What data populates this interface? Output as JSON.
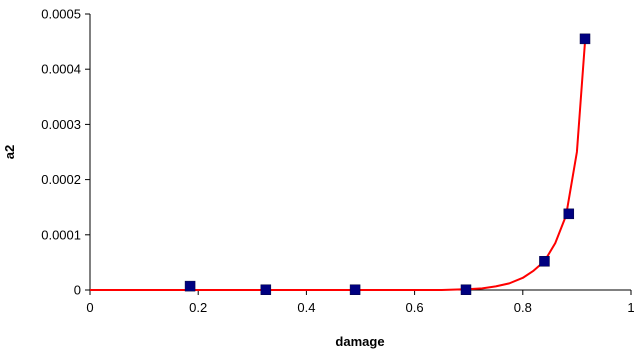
{
  "chart_data": {
    "type": "scatter",
    "title": "",
    "xlabel": "damage",
    "ylabel": "a2",
    "xlim": [
      0,
      1
    ],
    "ylim": [
      0,
      0.0005
    ],
    "x_ticks": [
      0,
      0.2,
      0.4,
      0.6,
      0.8,
      1
    ],
    "x_tick_labels": [
      "0",
      "0.2",
      "0.4",
      "0.6",
      "0.8",
      "1"
    ],
    "y_ticks": [
      0,
      0.0001,
      0.0002,
      0.0003,
      0.0004,
      0.0005
    ],
    "y_tick_labels": [
      "0",
      "0.0001",
      "0.0002",
      "0.0003",
      "0.0004",
      "0.0005"
    ],
    "grid": false,
    "legend": "none",
    "series": [
      {
        "kind": "points",
        "marker": "square",
        "color": "#000080",
        "x": [
          0.185,
          0.325,
          0.49,
          0.695,
          0.84,
          0.885,
          0.915
        ],
        "y": [
          7e-06,
          5e-07,
          5e-07,
          5e-07,
          5.2e-05,
          0.000138,
          0.000455
        ]
      },
      {
        "kind": "fit-line",
        "color": "#ff0000",
        "x": [
          0,
          0.1,
          0.2,
          0.3,
          0.4,
          0.5,
          0.6,
          0.65,
          0.7,
          0.725,
          0.75,
          0.775,
          0.8,
          0.82,
          0.84,
          0.86,
          0.88,
          0.9,
          0.915
        ],
        "y": [
          0,
          0,
          0,
          0,
          0,
          0,
          0,
          0,
          1.5e-06,
          3e-06,
          6.5e-06,
          1.2e-05,
          2.2e-05,
          3.5e-05,
          5.2e-05,
          8.5e-05,
          0.000135,
          0.00025,
          0.00045
        ]
      }
    ]
  }
}
